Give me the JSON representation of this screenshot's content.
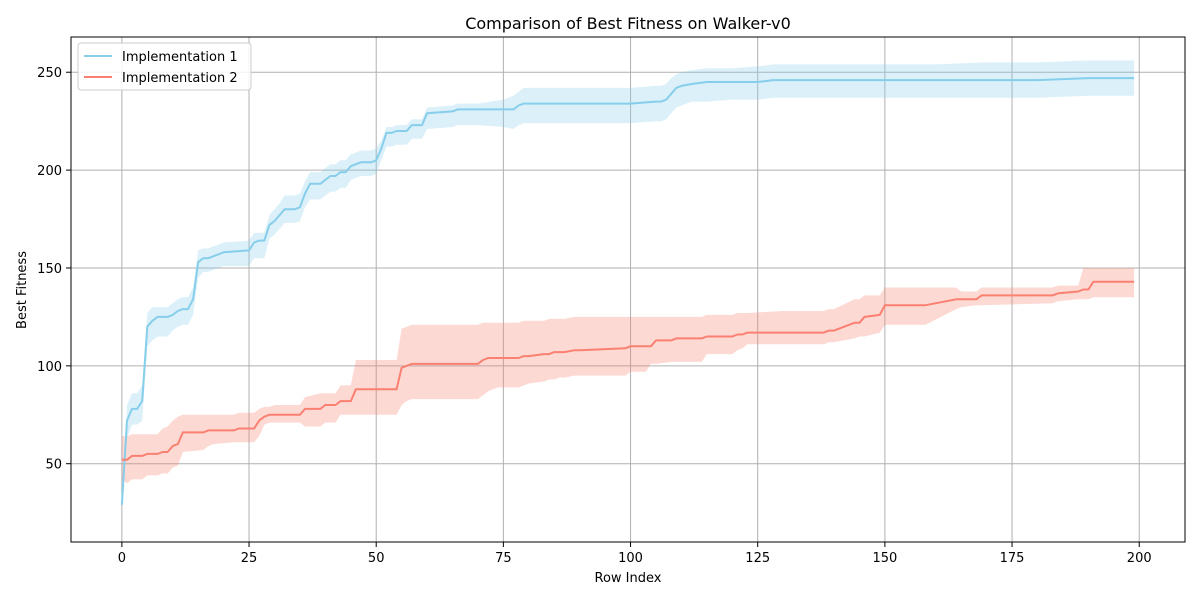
{
  "chart_data": {
    "type": "line",
    "title": "Comparison of Best Fitness on Walker-v0",
    "xlabel": "Row Index",
    "ylabel": "Best Fitness",
    "xlim": [
      -10,
      209
    ],
    "ylim": [
      10,
      268
    ],
    "x_ticks": [
      0,
      25,
      50,
      75,
      100,
      125,
      150,
      175,
      200
    ],
    "y_ticks": [
      50,
      100,
      150,
      200,
      250
    ],
    "grid": true,
    "legend_position": "top-left",
    "series": [
      {
        "name": "Implementation 1",
        "color": "#87CEEB",
        "band_color": "#87CEEB",
        "x": [
          0,
          1,
          2,
          3,
          4,
          5,
          6,
          7,
          8,
          9,
          10,
          11,
          12,
          13,
          14,
          15,
          16,
          17,
          18,
          19,
          20,
          25,
          26,
          27,
          28,
          29,
          30,
          31,
          32,
          33,
          34,
          35,
          36,
          37,
          38,
          39,
          40,
          41,
          42,
          43,
          44,
          45,
          46,
          47,
          48,
          49,
          50,
          51,
          52,
          53,
          54,
          55,
          56,
          57,
          58,
          59,
          60,
          65,
          66,
          70,
          75,
          77,
          78,
          79,
          80,
          90,
          95,
          100,
          105,
          106,
          107,
          108,
          109,
          110,
          112,
          115,
          120,
          125,
          128,
          150,
          160,
          170,
          180,
          190,
          195,
          199
        ],
        "mean": [
          29,
          72,
          78,
          78,
          82,
          120,
          123,
          125,
          125,
          125,
          126,
          128,
          129,
          129,
          134,
          153,
          155,
          155,
          156,
          157,
          158,
          159,
          163,
          164,
          164,
          172,
          174,
          177,
          180,
          180,
          180,
          181,
          188,
          193,
          193,
          193,
          195,
          197,
          197,
          199,
          199,
          202,
          203,
          204,
          204,
          204,
          205,
          211,
          219,
          219,
          220,
          220,
          220,
          223,
          223,
          223,
          229,
          230,
          231,
          231,
          231,
          231,
          233,
          234,
          234,
          234,
          234,
          234,
          235,
          235,
          236,
          239,
          242,
          243,
          244,
          245,
          245,
          245,
          246,
          246,
          246,
          246,
          246,
          247,
          247,
          247
        ],
        "lower": [
          27,
          63,
          70,
          70,
          72,
          110,
          113,
          115,
          115,
          115,
          118,
          120,
          121,
          121,
          126,
          145,
          148,
          148,
          149,
          150,
          151,
          151,
          155,
          155,
          155,
          165,
          167,
          170,
          173,
          173,
          173,
          174,
          181,
          185,
          185,
          185,
          187,
          189,
          189,
          191,
          191,
          195,
          196,
          197,
          197,
          197,
          198,
          205,
          212,
          212,
          213,
          213,
          213,
          216,
          216,
          216,
          221,
          222,
          223,
          223,
          222,
          221,
          223,
          224,
          224,
          224,
          224,
          224,
          225,
          225,
          226,
          229,
          232,
          233,
          235,
          235,
          236,
          236,
          237,
          237,
          237,
          237,
          237,
          238,
          238,
          238
        ],
        "upper": [
          31,
          80,
          86,
          86,
          90,
          127,
          130,
          130,
          130,
          130,
          132,
          134,
          135,
          135,
          140,
          159,
          160,
          160,
          161,
          162,
          163,
          164,
          168,
          168,
          168,
          177,
          180,
          183,
          187,
          187,
          187,
          188,
          194,
          199,
          199,
          199,
          201,
          203,
          203,
          205,
          205,
          208,
          209,
          210,
          210,
          210,
          211,
          215,
          222,
          222,
          223,
          223,
          223,
          226,
          226,
          226,
          232,
          233,
          234,
          234,
          236,
          238,
          240,
          242,
          242,
          242,
          242,
          242,
          243,
          243,
          244,
          247,
          249,
          250,
          251,
          252,
          252,
          253,
          254,
          254,
          254,
          255,
          255,
          256,
          256,
          256
        ]
      },
      {
        "name": "Implementation 2",
        "color": "#FA8072",
        "band_color": "#FA8072",
        "x": [
          0,
          1,
          2,
          3,
          4,
          5,
          6,
          7,
          8,
          9,
          10,
          11,
          12,
          16,
          17,
          18,
          22,
          23,
          26,
          27,
          28,
          29,
          30,
          35,
          36,
          39,
          40,
          42,
          43,
          45,
          46,
          54,
          55,
          56,
          57,
          70,
          71,
          72,
          73,
          74,
          78,
          79,
          80,
          83,
          84,
          85,
          86,
          87,
          89,
          90,
          99,
          100,
          103,
          104,
          105,
          108,
          109,
          114,
          115,
          120,
          121,
          122,
          123,
          130,
          134,
          138,
          139,
          140,
          144,
          145,
          146,
          149,
          150,
          157,
          158,
          164,
          165,
          168,
          169,
          183,
          184,
          188,
          189,
          190,
          191,
          199
        ],
        "mean": [
          52,
          52,
          54,
          54,
          54,
          55,
          55,
          55,
          56,
          56,
          59,
          60,
          66,
          66,
          67,
          67,
          67,
          68,
          68,
          72,
          74,
          75,
          75,
          75,
          78,
          78,
          80,
          80,
          82,
          82,
          88,
          88,
          99,
          100,
          101,
          101,
          103,
          104,
          104,
          104,
          104,
          105,
          105,
          106,
          106,
          107,
          107,
          107,
          108,
          108,
          109,
          110,
          110,
          110,
          113,
          113,
          114,
          114,
          115,
          115,
          116,
          116,
          117,
          117,
          117,
          117,
          118,
          118,
          122,
          122,
          125,
          126,
          131,
          131,
          131,
          134,
          134,
          134,
          136,
          136,
          137,
          138,
          139,
          139,
          143,
          143
        ],
        "lower": [
          42,
          40,
          42,
          42,
          42,
          44,
          44,
          44,
          45,
          45,
          48,
          49,
          56,
          57,
          59,
          60,
          61,
          61,
          61,
          64,
          70,
          71,
          71,
          71,
          69,
          69,
          71,
          71,
          75,
          75,
          75,
          75,
          80,
          82,
          83,
          83,
          85,
          87,
          88,
          89,
          89,
          90,
          91,
          92,
          93,
          93,
          94,
          94,
          95,
          95,
          95,
          97,
          97,
          101,
          101,
          102,
          102,
          102,
          106,
          106,
          108,
          109,
          111,
          111,
          111,
          111,
          112,
          112,
          114,
          115,
          115,
          117,
          121,
          121,
          121,
          129,
          130,
          131,
          131,
          132,
          133,
          134,
          134,
          134,
          135,
          135
        ],
        "upper": [
          64,
          64,
          65,
          65,
          65,
          65,
          65,
          65,
          68,
          69,
          72,
          74,
          75,
          75,
          75,
          75,
          75,
          76,
          76,
          78,
          79,
          79,
          80,
          80,
          84,
          86,
          86,
          86,
          90,
          90,
          103,
          103,
          119,
          120,
          121,
          121,
          122,
          122,
          122,
          122,
          122,
          123,
          123,
          123,
          124,
          124,
          124,
          124,
          125,
          125,
          125,
          125,
          125,
          125,
          125,
          125,
          125,
          125,
          126,
          126,
          127,
          127,
          127,
          128,
          128,
          128,
          129,
          129,
          134,
          134,
          136,
          136,
          140,
          140,
          140,
          140,
          138,
          138,
          140,
          140,
          141,
          141,
          150,
          150,
          150,
          150
        ]
      }
    ]
  }
}
